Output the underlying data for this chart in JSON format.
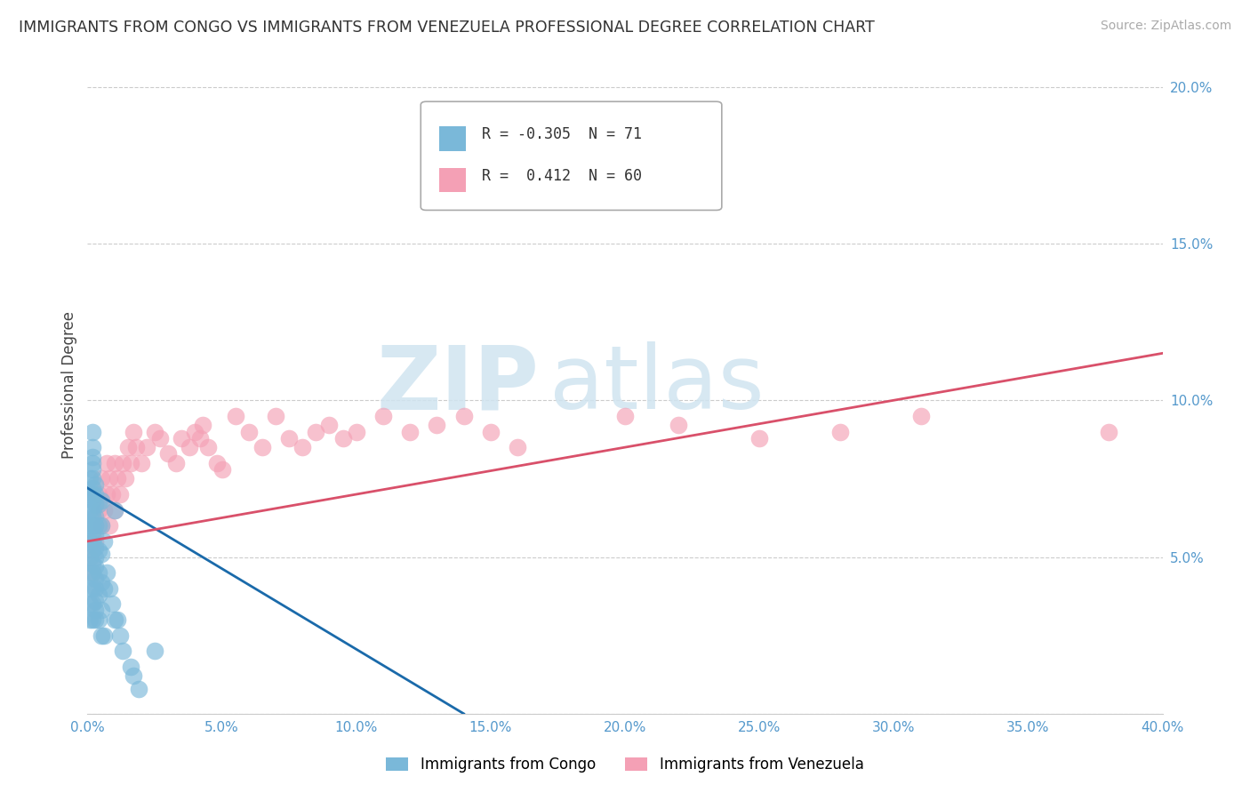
{
  "title": "IMMIGRANTS FROM CONGO VS IMMIGRANTS FROM VENEZUELA PROFESSIONAL DEGREE CORRELATION CHART",
  "source": "Source: ZipAtlas.com",
  "ylabel": "Professional Degree",
  "xlim": [
    0.0,
    0.4
  ],
  "ylim": [
    0.0,
    0.21
  ],
  "xticks": [
    0.0,
    0.05,
    0.1,
    0.15,
    0.2,
    0.25,
    0.3,
    0.35,
    0.4
  ],
  "yticks": [
    0.0,
    0.05,
    0.1,
    0.15,
    0.2
  ],
  "congo_color": "#7ab8d9",
  "venezuela_color": "#f4a0b5",
  "congo_line_color": "#1a6aaa",
  "venezuela_line_color": "#d9506a",
  "congo_R": -0.305,
  "congo_N": 71,
  "venezuela_R": 0.412,
  "venezuela_N": 60,
  "legend_label_congo": "Immigrants from Congo",
  "legend_label_venezuela": "Immigrants from Venezuela",
  "watermark_zip": "ZIP",
  "watermark_atlas": "atlas",
  "background_color": "#ffffff",
  "grid_color": "#cccccc",
  "congo_scatter_x": [
    0.001,
    0.001,
    0.001,
    0.001,
    0.001,
    0.001,
    0.001,
    0.001,
    0.001,
    0.001,
    0.002,
    0.002,
    0.002,
    0.002,
    0.002,
    0.002,
    0.002,
    0.002,
    0.002,
    0.002,
    0.002,
    0.002,
    0.002,
    0.002,
    0.002,
    0.002,
    0.002,
    0.002,
    0.002,
    0.002,
    0.003,
    0.003,
    0.003,
    0.003,
    0.003,
    0.003,
    0.003,
    0.003,
    0.003,
    0.003,
    0.003,
    0.003,
    0.003,
    0.003,
    0.004,
    0.004,
    0.004,
    0.004,
    0.004,
    0.004,
    0.005,
    0.005,
    0.005,
    0.005,
    0.005,
    0.005,
    0.006,
    0.006,
    0.006,
    0.007,
    0.008,
    0.009,
    0.01,
    0.01,
    0.011,
    0.012,
    0.013,
    0.016,
    0.017,
    0.019,
    0.025
  ],
  "congo_scatter_y": [
    0.03,
    0.035,
    0.04,
    0.045,
    0.05,
    0.055,
    0.06,
    0.065,
    0.07,
    0.075,
    0.03,
    0.035,
    0.04,
    0.045,
    0.048,
    0.052,
    0.055,
    0.058,
    0.06,
    0.063,
    0.065,
    0.068,
    0.07,
    0.072,
    0.075,
    0.078,
    0.08,
    0.082,
    0.085,
    0.09,
    0.03,
    0.033,
    0.036,
    0.04,
    0.043,
    0.047,
    0.05,
    0.053,
    0.057,
    0.06,
    0.063,
    0.067,
    0.07,
    0.073,
    0.03,
    0.038,
    0.045,
    0.052,
    0.06,
    0.067,
    0.025,
    0.033,
    0.042,
    0.051,
    0.06,
    0.068,
    0.025,
    0.04,
    0.055,
    0.045,
    0.04,
    0.035,
    0.03,
    0.065,
    0.03,
    0.025,
    0.02,
    0.015,
    0.012,
    0.008,
    0.02
  ],
  "venezuela_scatter_x": [
    0.001,
    0.002,
    0.003,
    0.003,
    0.004,
    0.004,
    0.005,
    0.005,
    0.006,
    0.007,
    0.007,
    0.008,
    0.008,
    0.009,
    0.01,
    0.01,
    0.011,
    0.012,
    0.013,
    0.014,
    0.015,
    0.016,
    0.017,
    0.018,
    0.02,
    0.022,
    0.025,
    0.027,
    0.03,
    0.033,
    0.035,
    0.038,
    0.04,
    0.042,
    0.043,
    0.045,
    0.048,
    0.05,
    0.055,
    0.06,
    0.065,
    0.07,
    0.075,
    0.08,
    0.085,
    0.09,
    0.095,
    0.1,
    0.11,
    0.12,
    0.13,
    0.14,
    0.15,
    0.16,
    0.2,
    0.22,
    0.25,
    0.28,
    0.31,
    0.38
  ],
  "venezuela_scatter_y": [
    0.05,
    0.045,
    0.06,
    0.055,
    0.065,
    0.07,
    0.06,
    0.075,
    0.065,
    0.07,
    0.08,
    0.06,
    0.075,
    0.07,
    0.065,
    0.08,
    0.075,
    0.07,
    0.08,
    0.075,
    0.085,
    0.08,
    0.09,
    0.085,
    0.08,
    0.085,
    0.09,
    0.088,
    0.083,
    0.08,
    0.088,
    0.085,
    0.09,
    0.088,
    0.092,
    0.085,
    0.08,
    0.078,
    0.095,
    0.09,
    0.085,
    0.095,
    0.088,
    0.085,
    0.09,
    0.092,
    0.088,
    0.09,
    0.095,
    0.09,
    0.092,
    0.095,
    0.09,
    0.085,
    0.095,
    0.092,
    0.088,
    0.09,
    0.095,
    0.09
  ],
  "congo_line_x": [
    0.0,
    0.14
  ],
  "congo_line_y": [
    0.072,
    0.0
  ],
  "venezuela_line_x": [
    0.0,
    0.4
  ],
  "venezuela_line_y": [
    0.055,
    0.115
  ]
}
